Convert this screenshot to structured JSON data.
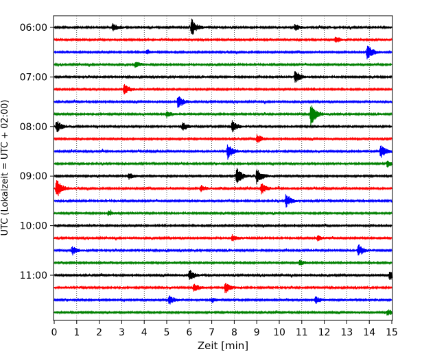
{
  "chart_data": {
    "type": "line",
    "title": "",
    "xlabel": "Zeit  [min]",
    "ylabel": "UTC (Lokalzeit = UTC + 02:00)",
    "xlim": [
      0,
      15
    ],
    "x_ticks": [
      "0",
      "1",
      "2",
      "3",
      "4",
      "5",
      "6",
      "7",
      "8",
      "9",
      "10",
      "11",
      "12",
      "13",
      "14",
      "15"
    ],
    "y_ticks": [
      "06:00",
      "07:00",
      "08:00",
      "09:00",
      "10:00",
      "11:00"
    ],
    "grid": "vertical dotted lines at each minute",
    "trace_interval_min": 15,
    "colors": [
      "#000000",
      "#ff0000",
      "#0000ff",
      "#008000"
    ],
    "traces": [
      {
        "start": "06:00",
        "color": "#000000",
        "events": [
          [
            2.6,
            6
          ],
          [
            6.1,
            14
          ],
          [
            10.7,
            5
          ]
        ]
      },
      {
        "start": "06:15",
        "color": "#ff0000",
        "events": [
          [
            12.5,
            5
          ]
        ]
      },
      {
        "start": "06:30",
        "color": "#0000ff",
        "events": [
          [
            4.1,
            4
          ],
          [
            13.9,
            13
          ]
        ]
      },
      {
        "start": "06:45",
        "color": "#008000",
        "events": [
          [
            3.6,
            5
          ]
        ]
      },
      {
        "start": "07:00",
        "color": "#000000",
        "events": [
          [
            10.7,
            11
          ]
        ]
      },
      {
        "start": "07:15",
        "color": "#ff0000",
        "events": [
          [
            3.1,
            9
          ]
        ]
      },
      {
        "start": "07:30",
        "color": "#0000ff",
        "events": [
          [
            5.5,
            11
          ]
        ]
      },
      {
        "start": "07:45",
        "color": "#008000",
        "events": [
          [
            5.0,
            5
          ],
          [
            11.4,
            18
          ]
        ]
      },
      {
        "start": "08:00",
        "color": "#000000",
        "events": [
          [
            0.1,
            10
          ],
          [
            5.7,
            7
          ],
          [
            7.9,
            9
          ]
        ]
      },
      {
        "start": "08:15",
        "color": "#ff0000",
        "events": [
          [
            9.0,
            7
          ]
        ]
      },
      {
        "start": "08:30",
        "color": "#0000ff",
        "events": [
          [
            7.7,
            12
          ],
          [
            14.5,
            11
          ]
        ]
      },
      {
        "start": "08:45",
        "color": "#008000",
        "events": [
          [
            14.8,
            5
          ]
        ]
      },
      {
        "start": "09:00",
        "color": "#000000",
        "events": [
          [
            8.1,
            14
          ],
          [
            9.0,
            13
          ],
          [
            3.3,
            5
          ]
        ]
      },
      {
        "start": "09:15",
        "color": "#ff0000",
        "events": [
          [
            0.1,
            16
          ],
          [
            9.2,
            9
          ],
          [
            6.5,
            5
          ]
        ]
      },
      {
        "start": "09:30",
        "color": "#0000ff",
        "events": [
          [
            10.3,
            11
          ]
        ]
      },
      {
        "start": "09:45",
        "color": "#008000",
        "events": [
          [
            2.4,
            4
          ]
        ]
      },
      {
        "start": "10:00",
        "color": "#000000",
        "events": []
      },
      {
        "start": "10:15",
        "color": "#ff0000",
        "events": [
          [
            7.9,
            5
          ],
          [
            11.7,
            4
          ]
        ]
      },
      {
        "start": "10:30",
        "color": "#0000ff",
        "events": [
          [
            0.8,
            7
          ],
          [
            13.5,
            10
          ]
        ]
      },
      {
        "start": "10:45",
        "color": "#008000",
        "events": [
          [
            10.9,
            4
          ]
        ]
      },
      {
        "start": "11:00",
        "color": "#000000",
        "events": [
          [
            6.0,
            9
          ],
          [
            14.9,
            9
          ]
        ]
      },
      {
        "start": "11:15",
        "color": "#ff0000",
        "events": [
          [
            6.2,
            7
          ],
          [
            7.6,
            9
          ]
        ]
      },
      {
        "start": "11:30",
        "color": "#0000ff",
        "events": [
          [
            5.1,
            8
          ],
          [
            7.0,
            4
          ],
          [
            11.6,
            6
          ]
        ]
      },
      {
        "start": "11:45",
        "color": "#008000",
        "events": [
          [
            14.8,
            5
          ]
        ]
      }
    ]
  }
}
